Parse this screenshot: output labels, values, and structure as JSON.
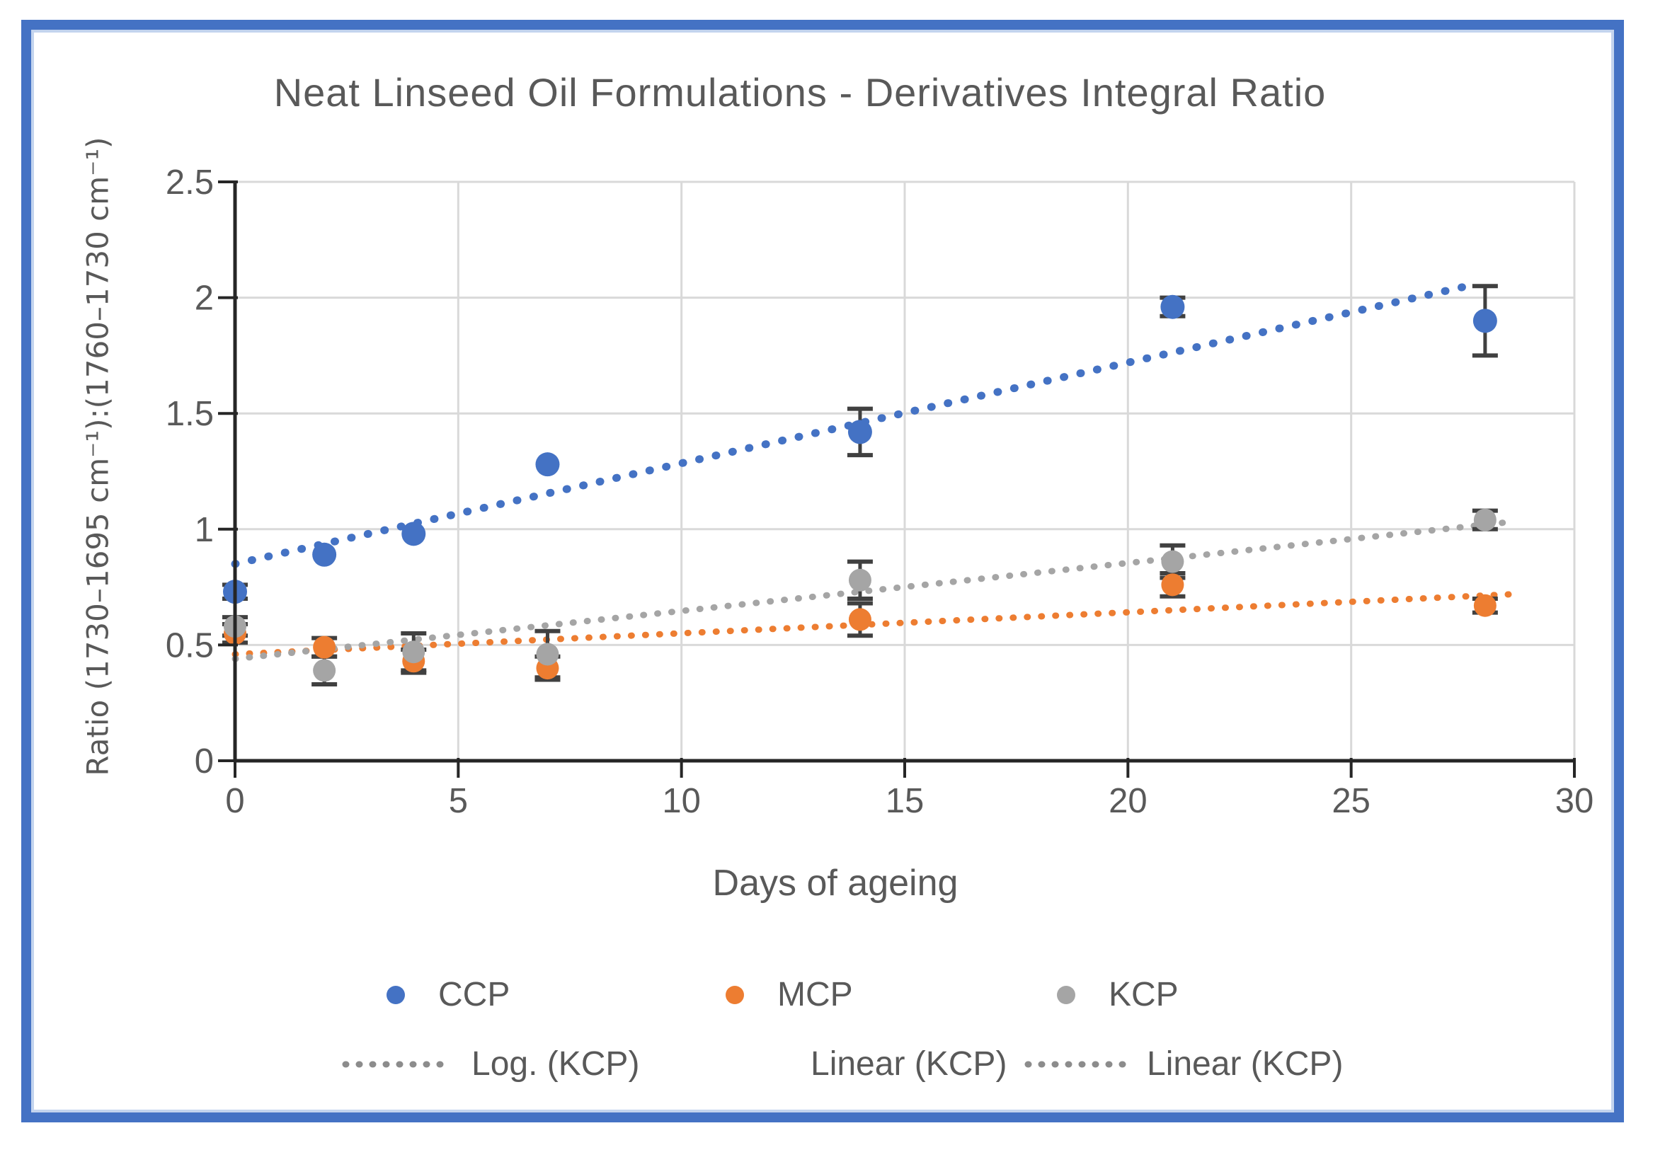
{
  "title": "Neat Linseed Oil Formulations - Derivatives Integral Ratio",
  "x_axis": {
    "label": "Days of ageing",
    "min": 0,
    "max": 30,
    "ticks": [
      0,
      5,
      10,
      15,
      20,
      25,
      30
    ]
  },
  "y_axis": {
    "label": "Ratio (1730–1695 cm⁻¹):(1760–1730 cm⁻¹)",
    "min": 0,
    "max": 2.5,
    "ticks": [
      "0",
      "0.5",
      "1",
      "1.5",
      "2",
      "2.5"
    ]
  },
  "chart_data": {
    "type": "scatter",
    "x": [
      0,
      2,
      4,
      7,
      14,
      21,
      28
    ],
    "xlabel": "Days of ageing",
    "ylabel": "Ratio (1730–1695 cm⁻¹):(1760–1730 cm⁻¹)",
    "title": "Neat Linseed Oil Formulations - Derivatives Integral Ratio",
    "xlim": [
      0,
      30
    ],
    "ylim": [
      0,
      2.5
    ],
    "grid": true,
    "legend_position": "bottom",
    "series": [
      {
        "name": "CCP",
        "color": "#4472C4",
        "values": [
          0.73,
          0.89,
          0.98,
          1.28,
          1.42,
          1.96,
          1.9
        ],
        "errors": [
          0.03,
          0.02,
          0.02,
          0.02,
          0.1,
          0.04,
          0.15
        ]
      },
      {
        "name": "MCP",
        "color": "#ED7D31",
        "values": [
          0.55,
          0.49,
          0.43,
          0.4,
          0.61,
          0.76,
          0.67
        ],
        "errors": [
          0.04,
          0.04,
          0.05,
          0.05,
          0.07,
          0.05,
          0.03
        ]
      },
      {
        "name": "KCP",
        "color": "#A5A5A5",
        "values": [
          0.58,
          0.39,
          0.47,
          0.46,
          0.78,
          0.86,
          1.04
        ],
        "errors": [
          0.04,
          0.06,
          0.08,
          0.1,
          0.08,
          0.07,
          0.04
        ]
      }
    ],
    "trendlines": [
      {
        "name": "Log. (KCP)",
        "color": "#4472C4",
        "points": [
          [
            0,
            0.85
          ],
          [
            27.6,
            2.05
          ]
        ]
      },
      {
        "name": "Linear (KCP)",
        "color": "#ED7D31",
        "points": [
          [
            0,
            0.46
          ],
          [
            28.7,
            0.72
          ]
        ]
      },
      {
        "name": "Linear (KCP)",
        "color": "#A5A5A5",
        "points": [
          [
            0,
            0.44
          ],
          [
            28.5,
            1.03
          ]
        ]
      }
    ]
  },
  "legend": {
    "series": [
      {
        "label": "CCP",
        "color": "#4472C4"
      },
      {
        "label": "MCP",
        "color": "#ED7D31"
      },
      {
        "label": "KCP",
        "color": "#A5A5A5"
      }
    ],
    "trendlines": [
      {
        "label": "Log. (KCP)",
        "sample": "dotted",
        "sample_color": "#8C8C8C"
      },
      {
        "label": "Linear (KCP)",
        "sample": "none",
        "sample_color": ""
      },
      {
        "label": "Linear (KCP)",
        "sample": "dotted",
        "sample_color": "#8C8C8C"
      }
    ]
  },
  "style": {
    "frame_color": "#4472C4",
    "grid_color": "#D9D9D9",
    "axis_color": "#262626",
    "error_bar_color": "#404040",
    "text_color": "#595959"
  }
}
